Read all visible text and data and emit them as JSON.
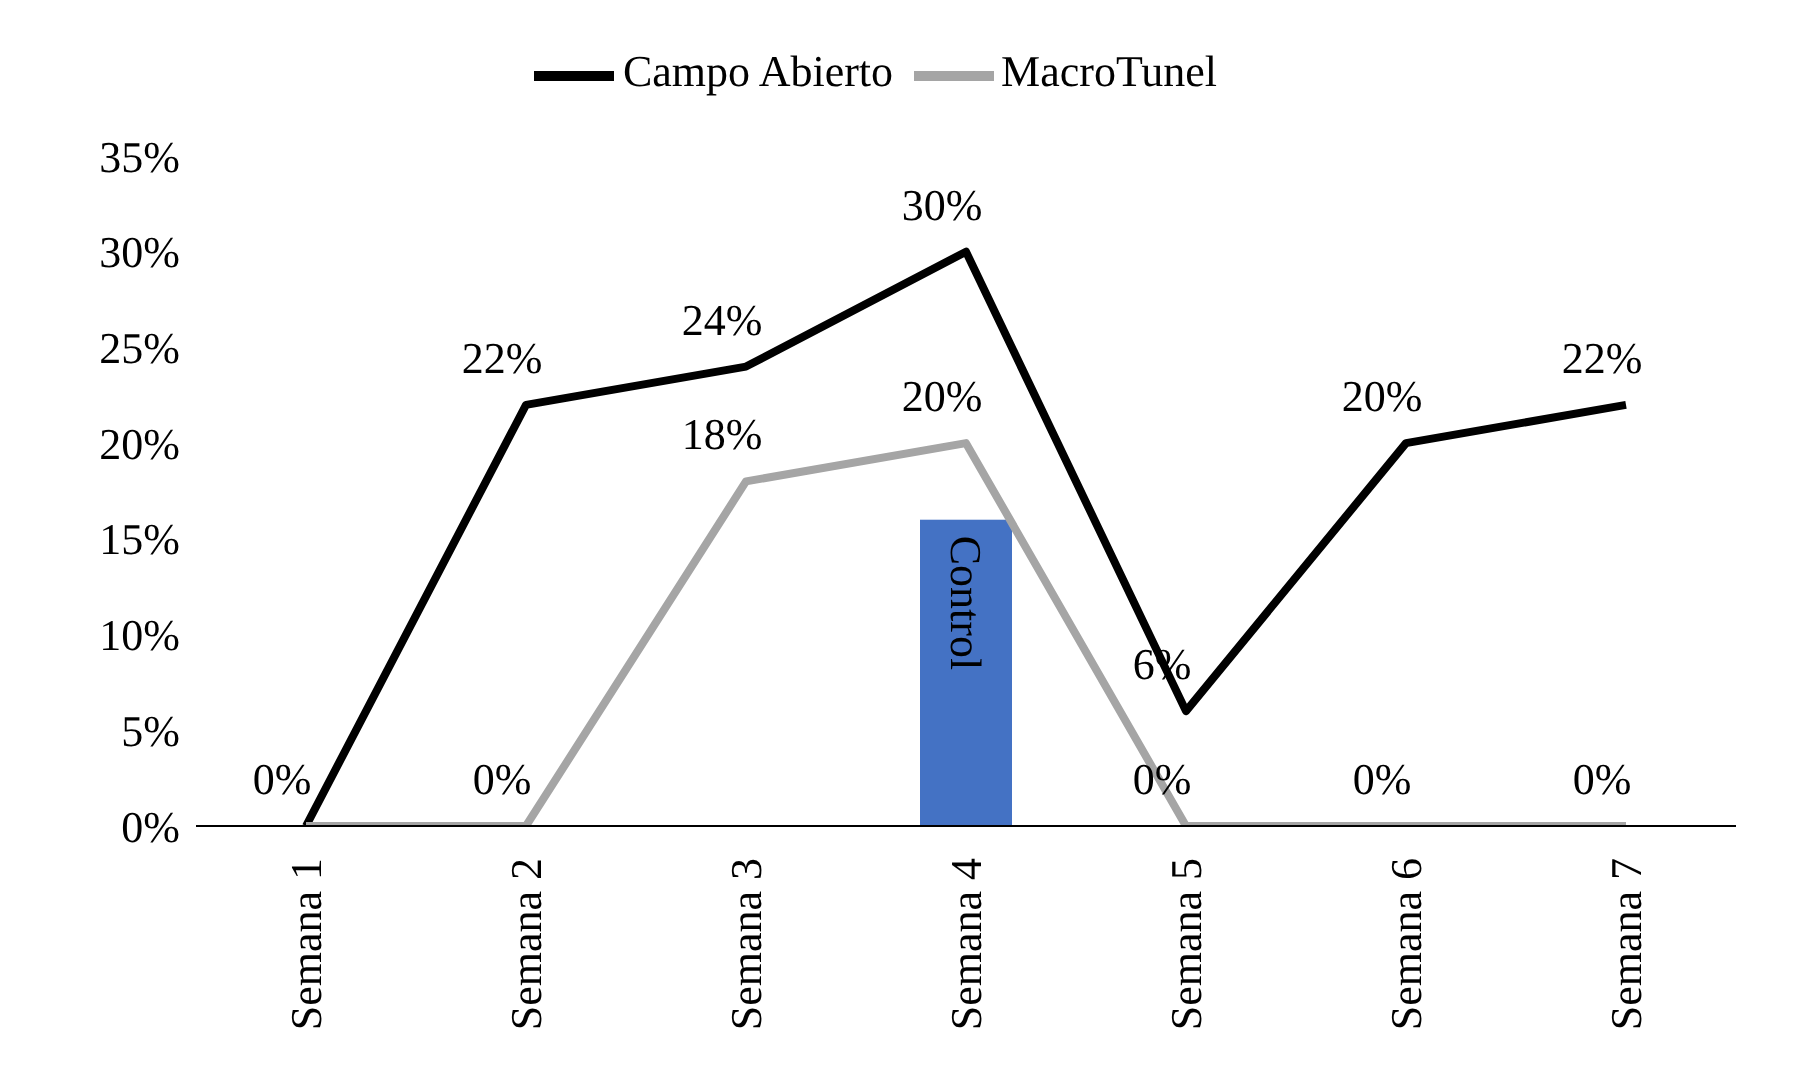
{
  "chart_data": {
    "type": "line",
    "categories": [
      "Semana 1",
      "Semana 2",
      "Semana 3",
      "Semana 4",
      "Semana 5",
      "Semana 6",
      "Semana 7"
    ],
    "series": [
      {
        "name": "Campo Abierto",
        "color": "#000000",
        "values": [
          0,
          22,
          24,
          30,
          6,
          20,
          22
        ],
        "value_labels": [
          "0%",
          "22%",
          "24%",
          "30%",
          "6%",
          "20%",
          "22%"
        ]
      },
      {
        "name": "MacroTunel",
        "color": "#a5a5a5",
        "values": [
          0,
          0,
          18,
          20,
          0,
          0,
          0
        ],
        "value_labels": [
          null,
          "0%",
          "18%",
          "20%",
          "0%",
          "0%",
          "0%"
        ]
      },
      {
        "type": "bar",
        "color": "#4472c4",
        "values": [
          null,
          null,
          null,
          16,
          null,
          null,
          null
        ],
        "value_labels": [
          null,
          null,
          null,
          "Control",
          null,
          null,
          null
        ]
      }
    ],
    "ylim": [
      0,
      35
    ],
    "yticks": [
      {
        "value": 0,
        "label": "0%"
      },
      {
        "value": 5,
        "label": "5%"
      },
      {
        "value": 10,
        "label": "10%"
      },
      {
        "value": 15,
        "label": "15%"
      },
      {
        "value": 20,
        "label": "20%"
      },
      {
        "value": 25,
        "label": "25%"
      },
      {
        "value": 30,
        "label": "30%"
      },
      {
        "value": 35,
        "label": "35%"
      }
    ],
    "grid": false,
    "legend": "top",
    "marker": "none",
    "line_style": "solid"
  }
}
